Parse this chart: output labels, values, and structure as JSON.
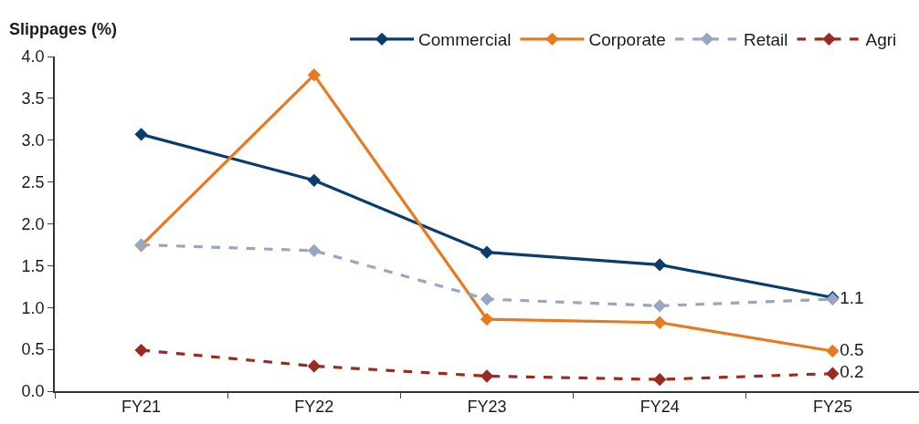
{
  "chart_data": {
    "type": "line",
    "ylabel": "Slippages (%)",
    "categories": [
      "FY21",
      "FY22",
      "FY23",
      "FY24",
      "FY25"
    ],
    "series": [
      {
        "name": "Commercial",
        "color": "#0b3c6e",
        "values": [
          3.07,
          2.52,
          1.66,
          1.51,
          1.12
        ]
      },
      {
        "name": "Corporate",
        "color": "#e8791e",
        "values": [
          1.74,
          3.78,
          0.86,
          0.82,
          0.48
        ],
        "value_labels": [
          null,
          null,
          null,
          null,
          "0.5"
        ]
      },
      {
        "name": "Retail",
        "color": "#97a6c4",
        "line_style": "dashed",
        "values": [
          1.75,
          1.68,
          1.1,
          1.02,
          1.1
        ],
        "value_labels": [
          null,
          null,
          null,
          null,
          "1.1"
        ]
      },
      {
        "name": "Agri",
        "color": "#9b2a20",
        "line_style": "dashed",
        "values": [
          0.49,
          0.3,
          0.18,
          0.14,
          0.21
        ],
        "value_labels": [
          null,
          null,
          null,
          null,
          "0.2"
        ]
      }
    ],
    "ylim": [
      0,
      4
    ],
    "yticks": [
      {
        "value": 0,
        "label": "0.0"
      },
      {
        "value": 0.5,
        "label": "0.5"
      },
      {
        "value": 1,
        "label": "1.0"
      },
      {
        "value": 1.5,
        "label": "1.5"
      },
      {
        "value": 2,
        "label": "2.0"
      },
      {
        "value": 2.5,
        "label": "2.5"
      },
      {
        "value": 3,
        "label": "3.0"
      },
      {
        "value": 3.5,
        "label": "3.5"
      },
      {
        "value": 4,
        "label": "4.0"
      }
    ],
    "marker": "diamond",
    "line_style": "solid",
    "legend": "top"
  }
}
